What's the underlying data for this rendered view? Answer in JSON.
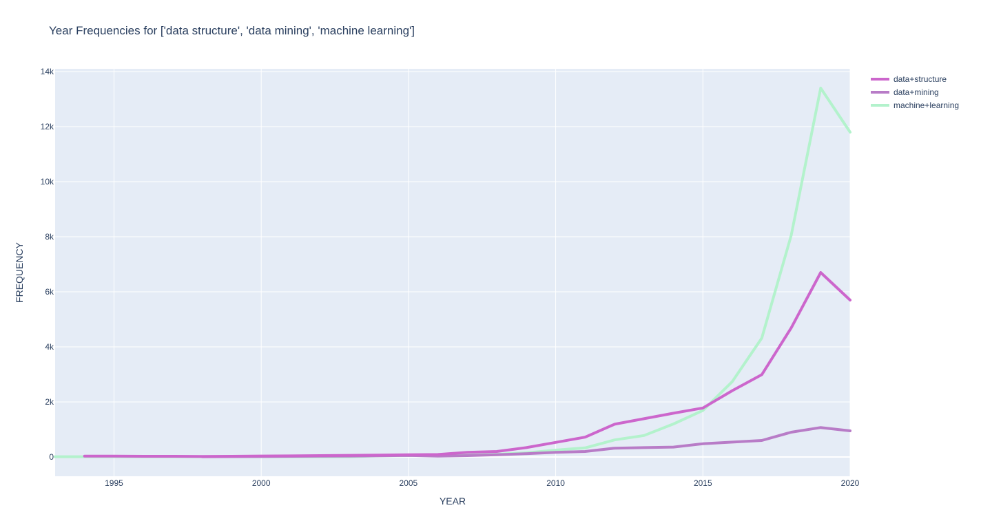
{
  "chart_data": {
    "type": "line",
    "title": "Year Frequencies for ['data structure', 'data mining', 'machine learning']",
    "xlabel": "YEAR",
    "ylabel": "FREQUENCY",
    "xlim": [
      1993,
      2020
    ],
    "ylim": [
      -700,
      14100
    ],
    "x_ticks": [
      1995,
      2000,
      2005,
      2010,
      2015,
      2020
    ],
    "x_tick_labels": [
      "1995",
      "2000",
      "2005",
      "2010",
      "2015",
      "2020"
    ],
    "y_ticks": [
      0,
      2000,
      4000,
      6000,
      8000,
      10000,
      12000,
      14000
    ],
    "y_tick_labels": [
      "0",
      "2k",
      "4k",
      "6k",
      "8k",
      "10k",
      "12k",
      "14k"
    ],
    "grid": true,
    "legend_position": "top-right",
    "series": [
      {
        "name": "data+structure",
        "color": "#cc66cc",
        "x": [
          1994,
          1995,
          1996,
          1997,
          1998,
          1999,
          2000,
          2001,
          2002,
          2003,
          2004,
          2005,
          2006,
          2007,
          2008,
          2009,
          2010,
          2011,
          2012,
          2013,
          2014,
          2015,
          2016,
          2017,
          2018,
          2019,
          2020
        ],
        "values": [
          30,
          30,
          25,
          25,
          20,
          25,
          35,
          40,
          50,
          60,
          70,
          80,
          90,
          170,
          200,
          340,
          530,
          720,
          1190,
          1390,
          1590,
          1780,
          2410,
          2990,
          4690,
          6700,
          5700
        ]
      },
      {
        "name": "data+mining",
        "color": "#b87cc7",
        "x": [
          1998,
          1999,
          2000,
          2001,
          2002,
          2003,
          2004,
          2005,
          2006,
          2007,
          2008,
          2009,
          2010,
          2011,
          2012,
          2013,
          2014,
          2015,
          2016,
          2017,
          2018,
          2019,
          2020
        ],
        "values": [
          10,
          15,
          20,
          25,
          30,
          35,
          45,
          55,
          30,
          50,
          80,
          120,
          170,
          200,
          320,
          340,
          360,
          480,
          540,
          600,
          900,
          1070,
          950
        ]
      },
      {
        "name": "machine+learning",
        "color": "#b3f2cc",
        "x": [
          1993,
          1994,
          1995,
          1996,
          1997,
          1998,
          1999,
          2000,
          2001,
          2002,
          2003,
          2004,
          2005,
          2006,
          2007,
          2008,
          2009,
          2010,
          2011,
          2012,
          2013,
          2014,
          2015,
          2016,
          2017,
          2018,
          2019,
          2020
        ],
        "values": [
          10,
          10,
          10,
          10,
          10,
          10,
          10,
          10,
          10,
          10,
          10,
          40,
          50,
          60,
          70,
          100,
          150,
          250,
          330,
          620,
          780,
          1200,
          1690,
          2740,
          4320,
          8050,
          13400,
          11800
        ]
      }
    ]
  }
}
